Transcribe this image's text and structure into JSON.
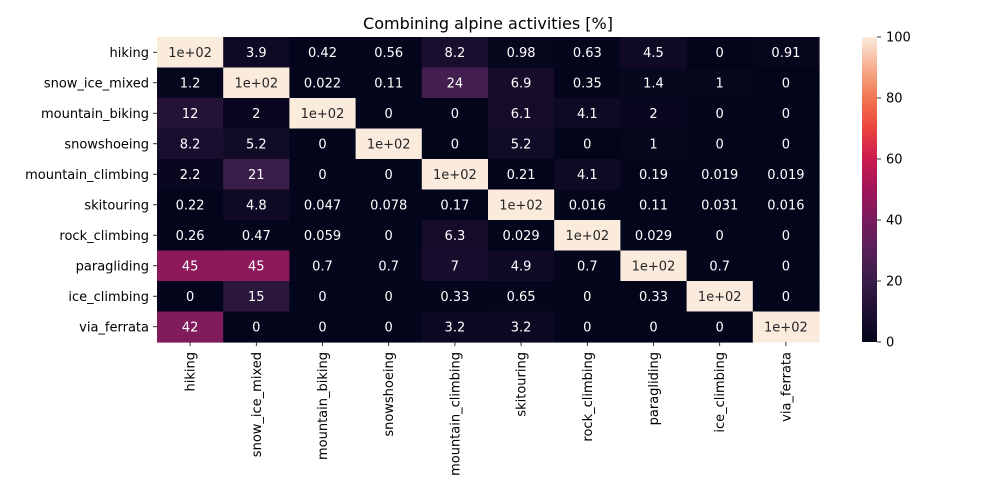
{
  "chart_data": {
    "type": "heatmap",
    "title": "Combining alpine activities [%]",
    "xlabel": "",
    "ylabel": "",
    "rows": [
      "hiking",
      "snow_ice_mixed",
      "mountain_biking",
      "snowshoeing",
      "mountain_climbing",
      "skitouring",
      "rock_climbing",
      "paragliding",
      "ice_climbing",
      "via_ferrata"
    ],
    "columns": [
      "hiking",
      "snow_ice_mixed",
      "mountain_biking",
      "snowshoeing",
      "mountain_climbing",
      "skitouring",
      "rock_climbing",
      "paragliding",
      "ice_climbing",
      "via_ferrata"
    ],
    "values": [
      [
        100,
        3.9,
        0.42,
        0.56,
        8.2,
        0.98,
        0.63,
        4.5,
        0,
        0.91
      ],
      [
        1.2,
        100,
        0.022,
        0.11,
        24,
        6.9,
        0.35,
        1.4,
        1,
        0
      ],
      [
        12,
        2,
        100,
        0,
        0,
        6.1,
        4.1,
        2,
        0,
        0
      ],
      [
        8.2,
        5.2,
        0,
        100,
        0,
        5.2,
        0,
        1,
        0,
        0
      ],
      [
        2.2,
        21,
        0,
        0,
        100,
        0.21,
        4.1,
        0.19,
        0.019,
        0.019
      ],
      [
        0.22,
        4.8,
        0.047,
        0.078,
        0.17,
        100,
        0.016,
        0.11,
        0.031,
        0.016
      ],
      [
        0.26,
        0.47,
        0.059,
        0,
        6.3,
        0.029,
        100,
        0.029,
        0,
        0
      ],
      [
        45,
        45,
        0.7,
        0.7,
        7,
        4.9,
        0.7,
        100,
        0.7,
        0
      ],
      [
        0,
        15,
        0,
        0,
        0.33,
        0.65,
        0,
        0.33,
        100,
        0
      ],
      [
        42,
        0,
        0,
        0,
        3.2,
        3.2,
        0,
        0,
        0,
        100
      ]
    ],
    "annotations": [
      [
        "1e+02",
        "3.9",
        "0.42",
        "0.56",
        "8.2",
        "0.98",
        "0.63",
        "4.5",
        "0",
        "0.91"
      ],
      [
        "1.2",
        "1e+02",
        "0.022",
        "0.11",
        "24",
        "6.9",
        "0.35",
        "1.4",
        "1",
        "0"
      ],
      [
        "12",
        "2",
        "1e+02",
        "0",
        "0",
        "6.1",
        "4.1",
        "2",
        "0",
        "0"
      ],
      [
        "8.2",
        "5.2",
        "0",
        "1e+02",
        "0",
        "5.2",
        "0",
        "1",
        "0",
        "0"
      ],
      [
        "2.2",
        "21",
        "0",
        "0",
        "1e+02",
        "0.21",
        "4.1",
        "0.19",
        "0.019",
        "0.019"
      ],
      [
        "0.22",
        "4.8",
        "0.047",
        "0.078",
        "0.17",
        "1e+02",
        "0.016",
        "0.11",
        "0.031",
        "0.016"
      ],
      [
        "0.26",
        "0.47",
        "0.059",
        "0",
        "6.3",
        "0.029",
        "1e+02",
        "0.029",
        "0",
        "0"
      ],
      [
        "45",
        "45",
        "0.7",
        "0.7",
        "7",
        "4.9",
        "0.7",
        "1e+02",
        "0.7",
        "0"
      ],
      [
        "0",
        "15",
        "0",
        "0",
        "0.33",
        "0.65",
        "0",
        "0.33",
        "1e+02",
        "0"
      ],
      [
        "42",
        "0",
        "0",
        "0",
        "3.2",
        "3.2",
        "0",
        "0",
        "0",
        "1e+02"
      ]
    ],
    "colorbar": {
      "range": [
        0,
        100
      ],
      "ticks": [
        0,
        20,
        40,
        60,
        80,
        100
      ],
      "colormap": "rocket"
    },
    "grid": false
  }
}
